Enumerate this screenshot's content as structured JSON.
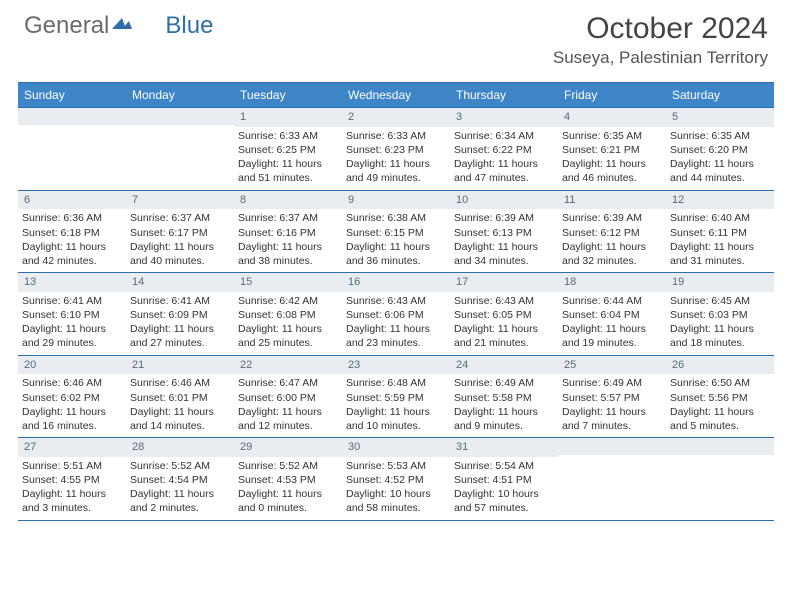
{
  "logo": {
    "part1": "General",
    "part2": "Blue"
  },
  "title": "October 2024",
  "location": "Suseya, Palestinian Territory",
  "colors": {
    "header_bg": "#3d85c6",
    "header_border": "#2f6fa8",
    "daynum_bg": "#e9edf1",
    "daynum_text": "#58697a"
  },
  "weekdays": [
    "Sunday",
    "Monday",
    "Tuesday",
    "Wednesday",
    "Thursday",
    "Friday",
    "Saturday"
  ],
  "weeks": [
    [
      null,
      null,
      {
        "n": "1",
        "sr": "6:33 AM",
        "ss": "6:25 PM",
        "dl": "11 hours and 51 minutes."
      },
      {
        "n": "2",
        "sr": "6:33 AM",
        "ss": "6:23 PM",
        "dl": "11 hours and 49 minutes."
      },
      {
        "n": "3",
        "sr": "6:34 AM",
        "ss": "6:22 PM",
        "dl": "11 hours and 47 minutes."
      },
      {
        "n": "4",
        "sr": "6:35 AM",
        "ss": "6:21 PM",
        "dl": "11 hours and 46 minutes."
      },
      {
        "n": "5",
        "sr": "6:35 AM",
        "ss": "6:20 PM",
        "dl": "11 hours and 44 minutes."
      }
    ],
    [
      {
        "n": "6",
        "sr": "6:36 AM",
        "ss": "6:18 PM",
        "dl": "11 hours and 42 minutes."
      },
      {
        "n": "7",
        "sr": "6:37 AM",
        "ss": "6:17 PM",
        "dl": "11 hours and 40 minutes."
      },
      {
        "n": "8",
        "sr": "6:37 AM",
        "ss": "6:16 PM",
        "dl": "11 hours and 38 minutes."
      },
      {
        "n": "9",
        "sr": "6:38 AM",
        "ss": "6:15 PM",
        "dl": "11 hours and 36 minutes."
      },
      {
        "n": "10",
        "sr": "6:39 AM",
        "ss": "6:13 PM",
        "dl": "11 hours and 34 minutes."
      },
      {
        "n": "11",
        "sr": "6:39 AM",
        "ss": "6:12 PM",
        "dl": "11 hours and 32 minutes."
      },
      {
        "n": "12",
        "sr": "6:40 AM",
        "ss": "6:11 PM",
        "dl": "11 hours and 31 minutes."
      }
    ],
    [
      {
        "n": "13",
        "sr": "6:41 AM",
        "ss": "6:10 PM",
        "dl": "11 hours and 29 minutes."
      },
      {
        "n": "14",
        "sr": "6:41 AM",
        "ss": "6:09 PM",
        "dl": "11 hours and 27 minutes."
      },
      {
        "n": "15",
        "sr": "6:42 AM",
        "ss": "6:08 PM",
        "dl": "11 hours and 25 minutes."
      },
      {
        "n": "16",
        "sr": "6:43 AM",
        "ss": "6:06 PM",
        "dl": "11 hours and 23 minutes."
      },
      {
        "n": "17",
        "sr": "6:43 AM",
        "ss": "6:05 PM",
        "dl": "11 hours and 21 minutes."
      },
      {
        "n": "18",
        "sr": "6:44 AM",
        "ss": "6:04 PM",
        "dl": "11 hours and 19 minutes."
      },
      {
        "n": "19",
        "sr": "6:45 AM",
        "ss": "6:03 PM",
        "dl": "11 hours and 18 minutes."
      }
    ],
    [
      {
        "n": "20",
        "sr": "6:46 AM",
        "ss": "6:02 PM",
        "dl": "11 hours and 16 minutes."
      },
      {
        "n": "21",
        "sr": "6:46 AM",
        "ss": "6:01 PM",
        "dl": "11 hours and 14 minutes."
      },
      {
        "n": "22",
        "sr": "6:47 AM",
        "ss": "6:00 PM",
        "dl": "11 hours and 12 minutes."
      },
      {
        "n": "23",
        "sr": "6:48 AM",
        "ss": "5:59 PM",
        "dl": "11 hours and 10 minutes."
      },
      {
        "n": "24",
        "sr": "6:49 AM",
        "ss": "5:58 PM",
        "dl": "11 hours and 9 minutes."
      },
      {
        "n": "25",
        "sr": "6:49 AM",
        "ss": "5:57 PM",
        "dl": "11 hours and 7 minutes."
      },
      {
        "n": "26",
        "sr": "6:50 AM",
        "ss": "5:56 PM",
        "dl": "11 hours and 5 minutes."
      }
    ],
    [
      {
        "n": "27",
        "sr": "5:51 AM",
        "ss": "4:55 PM",
        "dl": "11 hours and 3 minutes."
      },
      {
        "n": "28",
        "sr": "5:52 AM",
        "ss": "4:54 PM",
        "dl": "11 hours and 2 minutes."
      },
      {
        "n": "29",
        "sr": "5:52 AM",
        "ss": "4:53 PM",
        "dl": "11 hours and 0 minutes."
      },
      {
        "n": "30",
        "sr": "5:53 AM",
        "ss": "4:52 PM",
        "dl": "10 hours and 58 minutes."
      },
      {
        "n": "31",
        "sr": "5:54 AM",
        "ss": "4:51 PM",
        "dl": "10 hours and 57 minutes."
      },
      null,
      null
    ]
  ],
  "labels": {
    "sunrise": "Sunrise: ",
    "sunset": "Sunset: ",
    "daylight": "Daylight: "
  }
}
